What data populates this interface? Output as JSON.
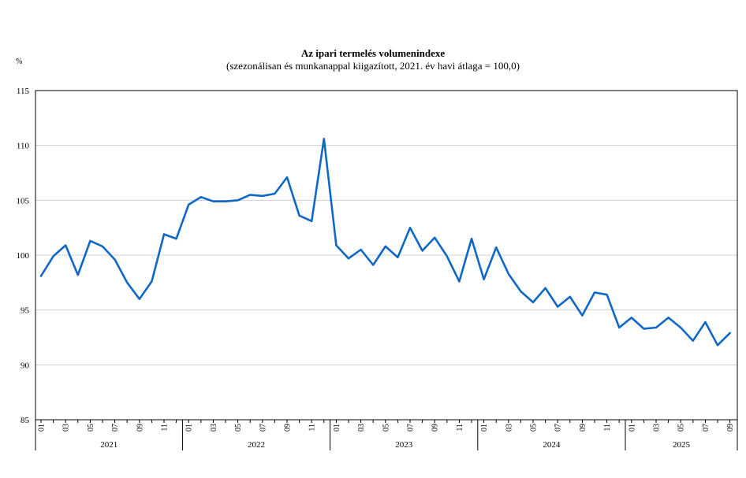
{
  "chart_data": {
    "type": "line",
    "title": "Az ipari termelés volumenindexe",
    "subtitle": "(szezonálisan és munkanappal kiigazított, 2021. év havi átlaga = 100,0)",
    "ylabel": "%",
    "ylim": [
      85,
      115
    ],
    "yticks": [
      85,
      90,
      95,
      100,
      105,
      110,
      115
    ],
    "grid": true,
    "line_color": "#0f67c8",
    "years": [
      "2021",
      "2022",
      "2023",
      "2024",
      "2025"
    ],
    "month_tick_labels": [
      "01",
      "03",
      "05",
      "07",
      "09",
      "11"
    ],
    "x": [
      "2021-01",
      "2021-02",
      "2021-03",
      "2021-04",
      "2021-05",
      "2021-06",
      "2021-07",
      "2021-08",
      "2021-09",
      "2021-10",
      "2021-11",
      "2021-12",
      "2022-01",
      "2022-02",
      "2022-03",
      "2022-04",
      "2022-05",
      "2022-06",
      "2022-07",
      "2022-08",
      "2022-09",
      "2022-10",
      "2022-11",
      "2022-12",
      "2023-01",
      "2023-02",
      "2023-03",
      "2023-04",
      "2023-05",
      "2023-06",
      "2023-07",
      "2023-08",
      "2023-09",
      "2023-10",
      "2023-11",
      "2023-12",
      "2024-01",
      "2024-02",
      "2024-03",
      "2024-04",
      "2024-05",
      "2024-06",
      "2024-07",
      "2024-08",
      "2024-09",
      "2024-10",
      "2024-11",
      "2024-12",
      "2025-01",
      "2025-02",
      "2025-03",
      "2025-04",
      "2025-05",
      "2025-06",
      "2025-07",
      "2025-08",
      "2025-09"
    ],
    "values": [
      98.1,
      99.9,
      100.9,
      98.2,
      101.3,
      100.8,
      99.6,
      97.5,
      96.0,
      97.6,
      101.9,
      101.5,
      104.6,
      105.3,
      104.9,
      104.9,
      105.0,
      105.5,
      105.4,
      105.6,
      107.1,
      103.6,
      103.1,
      110.6,
      100.9,
      99.7,
      100.5,
      99.1,
      100.8,
      99.8,
      102.5,
      100.4,
      101.6,
      99.9,
      97.6,
      101.5,
      97.8,
      100.7,
      98.3,
      96.7,
      95.7,
      97.0,
      95.3,
      96.2,
      94.5,
      96.6,
      96.4,
      93.4,
      94.3,
      93.3,
      93.4,
      94.3,
      93.4,
      92.2,
      93.9,
      91.8,
      92.9
    ]
  }
}
